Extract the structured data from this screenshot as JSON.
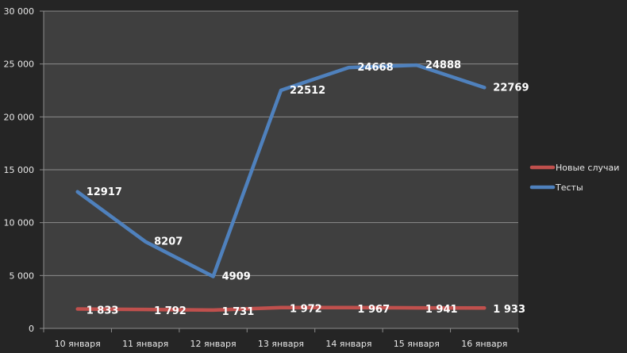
{
  "chart_data": {
    "type": "line",
    "categories": [
      "10 января",
      "11 января",
      "12 января",
      "13 января",
      "14 января",
      "15 января",
      "16 января"
    ],
    "series": [
      {
        "name": "Новые случаи",
        "values": [
          1833,
          1792,
          1731,
          1972,
          1967,
          1941,
          1933
        ],
        "labels": [
          "1 833",
          "1 792",
          "1 731",
          "1 972",
          "1 967",
          "1 941",
          "1 933"
        ],
        "color": "#c0504d"
      },
      {
        "name": "Тесты",
        "values": [
          12917,
          8207,
          4909,
          22512,
          24668,
          24888,
          22769
        ],
        "labels": [
          "12917",
          "8207",
          "4909",
          "22512",
          "24668",
          "24888",
          "22769"
        ],
        "color": "#4f81bd"
      }
    ],
    "ylim": [
      0,
      30000
    ],
    "yticks": [
      0,
      5000,
      10000,
      15000,
      20000,
      25000,
      30000
    ],
    "ytick_labels": [
      "0",
      "5 000",
      "10 000",
      "15 000",
      "20 000",
      "25 000",
      "30 000"
    ],
    "grid": true,
    "legend": "right",
    "background": "#252525",
    "plot_background": "#3f3f3f"
  }
}
